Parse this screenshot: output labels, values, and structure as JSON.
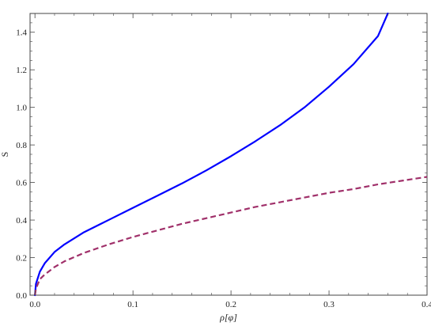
{
  "chart_data": {
    "type": "line",
    "title": "",
    "xlabel": "ρ[φ]",
    "ylabel": "S",
    "xlim": [
      -0.005,
      0.4
    ],
    "ylim": [
      0,
      1.5
    ],
    "x_ticks": [
      "0.0",
      "0.1",
      "0.2",
      "0.3",
      "0.4"
    ],
    "x_tick_values": [
      0.0,
      0.1,
      0.2,
      0.3,
      0.4
    ],
    "y_ticks": [
      "0.0",
      "0.2",
      "0.4",
      "0.6",
      "0.8",
      "1.0",
      "1.2",
      "1.4"
    ],
    "y_tick_values": [
      0.0,
      0.2,
      0.4,
      0.6,
      0.8,
      1.0,
      1.2,
      1.4
    ],
    "grid": false,
    "frame": true,
    "series": [
      {
        "color": "#0000ff",
        "style": "solid",
        "x": [
          0.0,
          0.001,
          0.005,
          0.01,
          0.02,
          0.03,
          0.05,
          0.075,
          0.1,
          0.125,
          0.15,
          0.175,
          0.2,
          0.225,
          0.25,
          0.275,
          0.3,
          0.325,
          0.35,
          0.36
        ],
        "y": [
          0.0,
          0.06,
          0.125,
          0.17,
          0.23,
          0.27,
          0.335,
          0.4,
          0.465,
          0.53,
          0.595,
          0.665,
          0.74,
          0.82,
          0.905,
          1.0,
          1.11,
          1.23,
          1.38,
          1.5
        ]
      },
      {
        "color": "#a0306a",
        "style": "dashed",
        "x": [
          0.0,
          0.001,
          0.005,
          0.01,
          0.02,
          0.03,
          0.05,
          0.075,
          0.1,
          0.125,
          0.15,
          0.175,
          0.2,
          0.225,
          0.25,
          0.275,
          0.3,
          0.325,
          0.35,
          0.375,
          0.4
        ],
        "y": [
          0.0,
          0.035,
          0.085,
          0.11,
          0.15,
          0.18,
          0.225,
          0.27,
          0.31,
          0.345,
          0.38,
          0.41,
          0.44,
          0.47,
          0.495,
          0.52,
          0.545,
          0.565,
          0.59,
          0.61,
          0.63
        ]
      }
    ]
  }
}
